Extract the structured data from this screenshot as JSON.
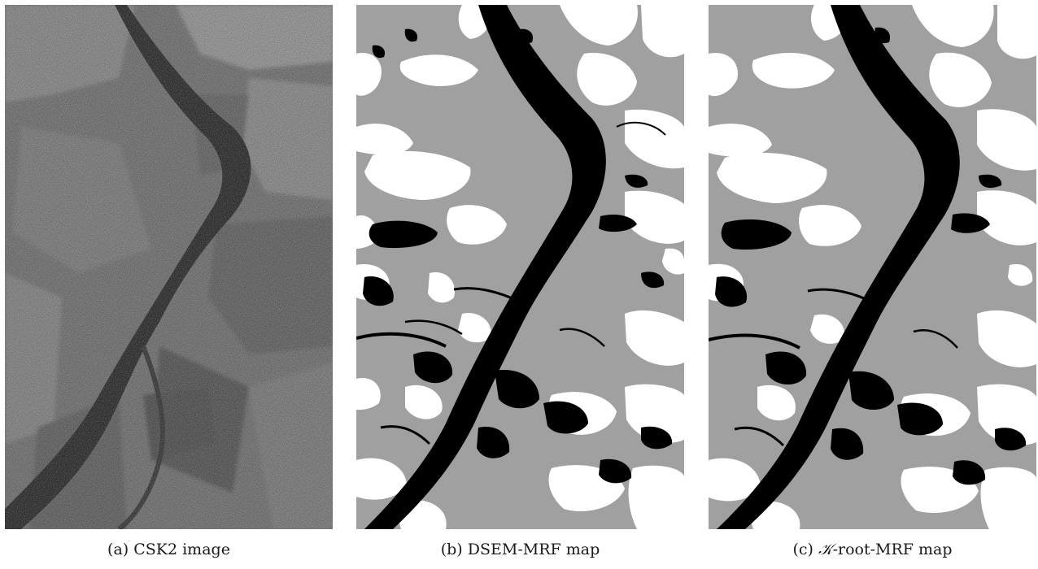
{
  "figure": {
    "panels": [
      {
        "id": "a",
        "label": "(a)",
        "caption": "CSK2 image"
      },
      {
        "id": "b",
        "label": "(b)",
        "caption": "DSEM-MRF map"
      },
      {
        "id": "c",
        "label": "(c)",
        "caption_symbol": "𝒦",
        "caption": "-root-MRF map"
      }
    ]
  },
  "colors": {
    "class_water": "#000000",
    "class_mid": "#a0a0a0",
    "class_bright": "#ffffff",
    "sar_base": "#6e6e6e",
    "sar_dark": "#161616"
  }
}
